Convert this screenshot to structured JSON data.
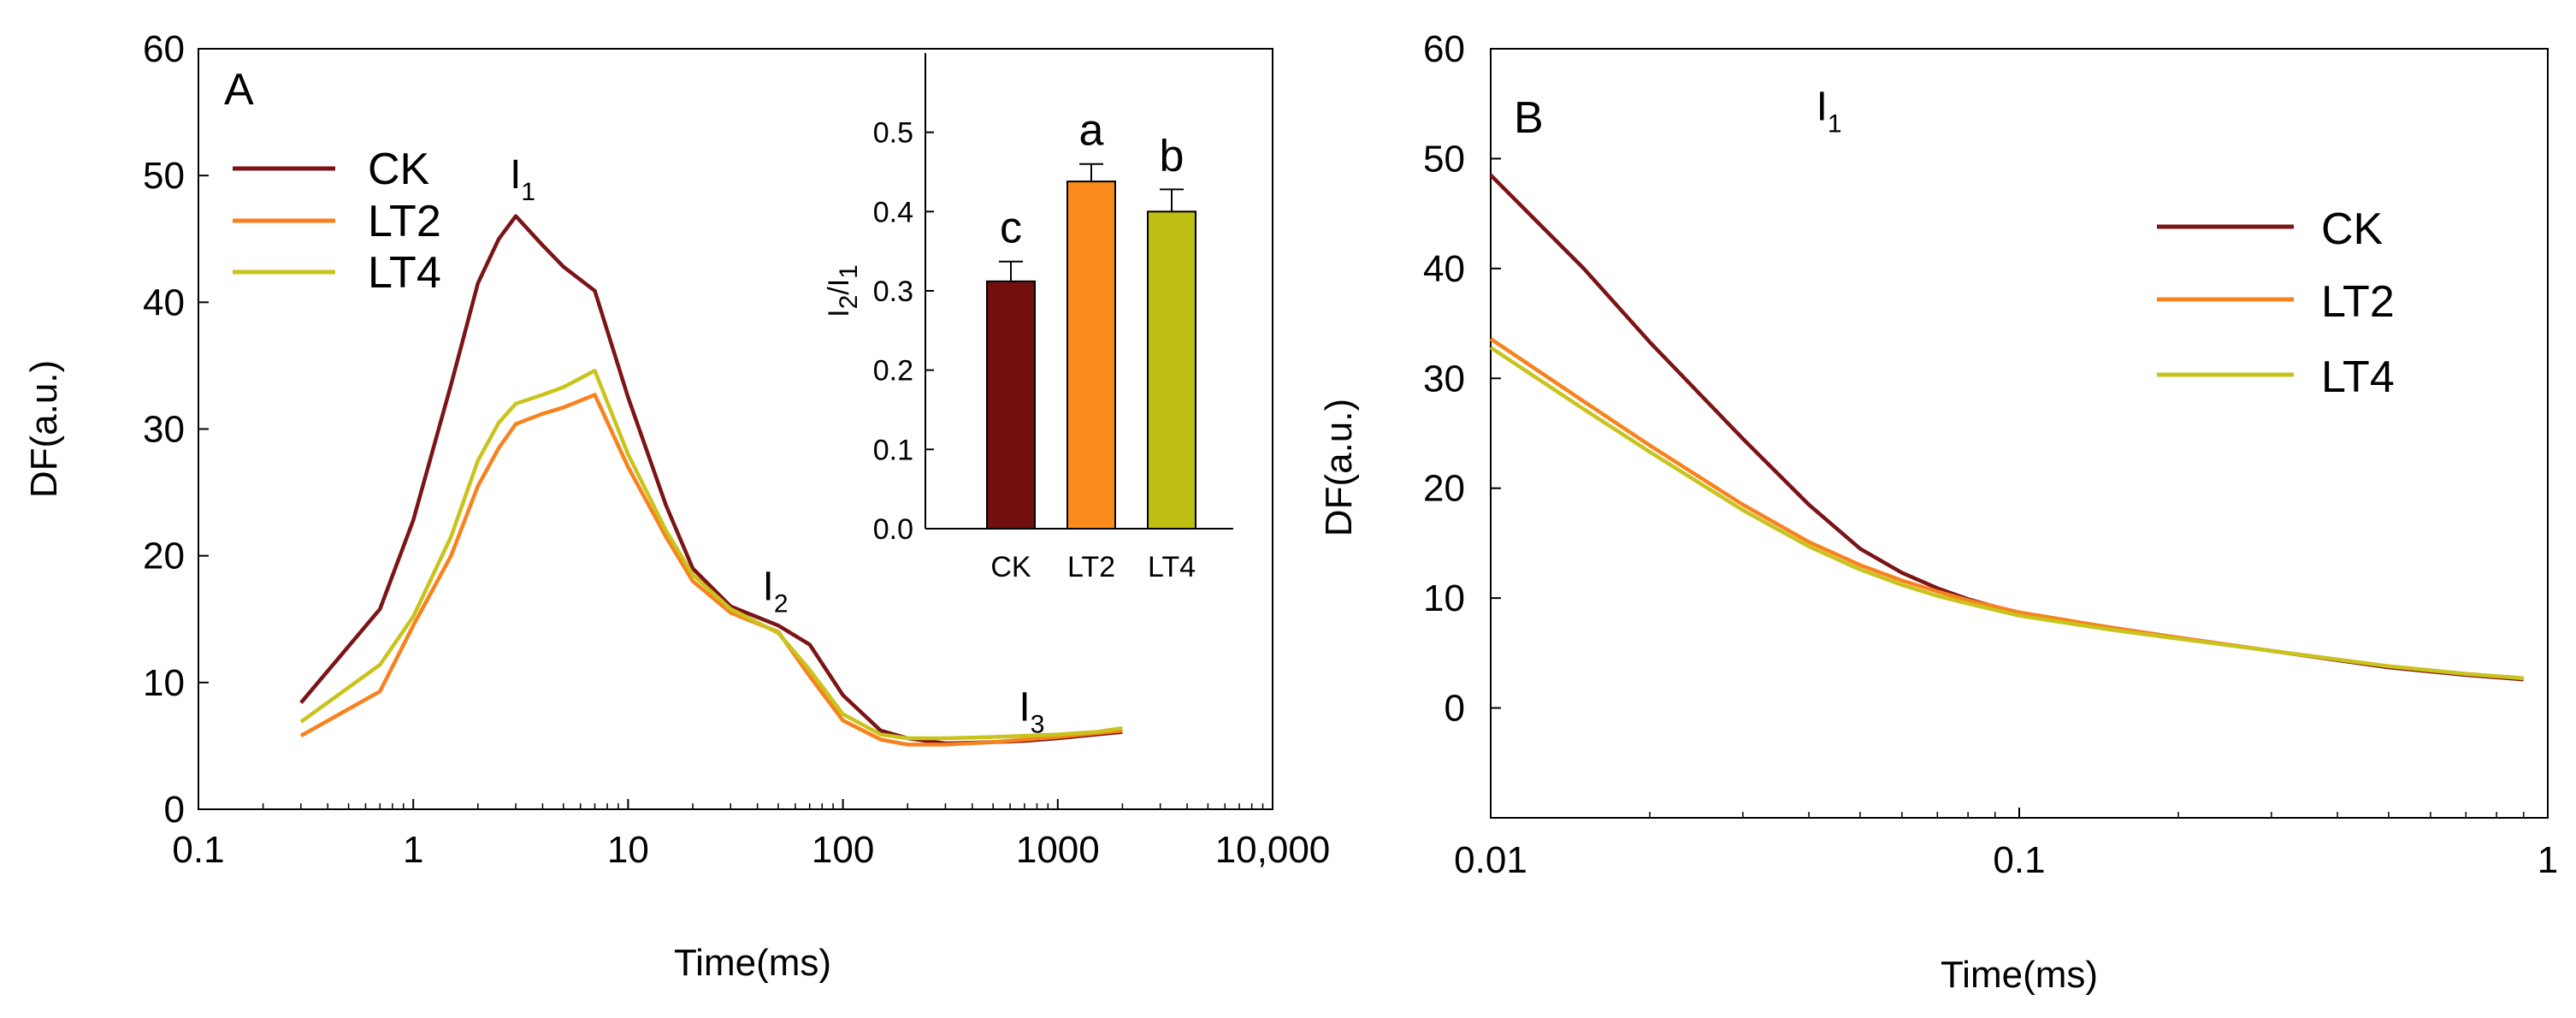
{
  "chart_data": [
    {
      "panel": "A",
      "type": "line",
      "xlabel": "Time(ms)",
      "ylabel": "DF(a.u.)",
      "x_scale": "log",
      "xlim": [
        0.1,
        10000
      ],
      "ylim": [
        0,
        60
      ],
      "x_ticks": [
        0.1,
        1,
        10,
        100,
        1000,
        10000
      ],
      "x_tick_labels": [
        "0.1",
        "1",
        "10",
        "100",
        "1000",
        "10,000"
      ],
      "y_ticks": [
        0,
        10,
        20,
        30,
        40,
        50,
        60
      ],
      "y_tick_labels": [
        "0",
        "10",
        "20",
        "30",
        "40",
        "50",
        "60"
      ],
      "legend_position": "top-left",
      "annotations": [
        {
          "base": "I",
          "sub": "1",
          "x": 3.2,
          "y": 49
        },
        {
          "base": "I",
          "sub": "2",
          "x": 48,
          "y": 16.5
        },
        {
          "base": "I",
          "sub": "3",
          "x": 750,
          "y": 7
        }
      ],
      "series": [
        {
          "name": "CK",
          "color": "#7b1416",
          "x": [
            0.3,
            0.7,
            1,
            1.5,
            2,
            2.5,
            3,
            4,
            5,
            7,
            10,
            15,
            20,
            30,
            50,
            70,
            100,
            150,
            200,
            300,
            500,
            700,
            1000,
            1500,
            2000
          ],
          "y": [
            8.4,
            15.8,
            22.8,
            33.5,
            41.5,
            45.0,
            46.8,
            44.5,
            42.8,
            40.9,
            32.5,
            24.0,
            19.0,
            16.0,
            14.5,
            13.0,
            9.0,
            6.2,
            5.6,
            5.2,
            5.3,
            5.4,
            5.6,
            5.9,
            6.1
          ]
        },
        {
          "name": "LT2",
          "color": "#f7821e",
          "x": [
            0.3,
            0.7,
            1,
            1.5,
            2,
            2.5,
            3,
            4,
            5,
            7,
            10,
            15,
            20,
            30,
            50,
            70,
            100,
            150,
            200,
            300,
            500,
            700,
            1000,
            1500,
            2000
          ],
          "y": [
            5.8,
            9.3,
            14.5,
            20.0,
            25.5,
            28.5,
            30.4,
            31.2,
            31.7,
            32.7,
            27.0,
            21.5,
            18.0,
            15.5,
            14.0,
            10.5,
            7.0,
            5.5,
            5.1,
            5.1,
            5.3,
            5.5,
            5.7,
            6.0,
            6.2
          ]
        },
        {
          "name": "LT4",
          "color": "#c9c31e",
          "x": [
            0.3,
            0.7,
            1,
            1.5,
            2,
            2.5,
            3,
            4,
            5,
            7,
            10,
            15,
            20,
            30,
            50,
            70,
            100,
            150,
            200,
            300,
            500,
            700,
            1000,
            1500,
            2000
          ],
          "y": [
            6.9,
            11.4,
            15.2,
            21.5,
            27.5,
            30.5,
            32.0,
            32.7,
            33.3,
            34.6,
            28.0,
            22.0,
            18.5,
            15.8,
            13.9,
            11.0,
            7.5,
            5.9,
            5.6,
            5.6,
            5.7,
            5.8,
            5.9,
            6.1,
            6.4
          ]
        }
      ]
    },
    {
      "panel": "A-inset",
      "type": "bar",
      "ylabel": {
        "base": "I",
        "sub1": "2",
        "sep": "/I",
        "sub2": "1"
      },
      "ylim": [
        0,
        0.6
      ],
      "y_ticks": [
        0.0,
        0.1,
        0.2,
        0.3,
        0.4,
        0.5
      ],
      "y_tick_labels": [
        "0.0",
        "0.1",
        "0.2",
        "0.3",
        "0.4",
        "0.5"
      ],
      "categories": [
        "CK",
        "LT2",
        "LT4"
      ],
      "values": [
        0.312,
        0.438,
        0.4
      ],
      "errors": [
        0.025,
        0.022,
        0.028
      ],
      "colors": [
        "#720f0f",
        "#fb8a1d",
        "#bfbe12"
      ],
      "significance": [
        "c",
        "a",
        "b"
      ]
    },
    {
      "panel": "B",
      "type": "line",
      "xlabel": "Time(ms)",
      "ylabel": "DF(a.u.)",
      "x_scale": "log",
      "xlim": [
        0.01,
        1
      ],
      "ylim": [
        -10,
        60
      ],
      "x_ticks": [
        0.01,
        0.1,
        1
      ],
      "x_tick_labels": [
        "0.01",
        "0.1",
        "1"
      ],
      "y_ticks": [
        0,
        10,
        20,
        30,
        40,
        50,
        60
      ],
      "y_tick_labels": [
        "0",
        "10",
        "20",
        "30",
        "40",
        "50",
        "60"
      ],
      "legend_position": "top-right",
      "annotations": [
        {
          "base": "I",
          "sub": "1",
          "x": 0.0435,
          "y": 53.5
        }
      ],
      "series": [
        {
          "name": "CK",
          "color": "#7b1416",
          "x": [
            0.01,
            0.015,
            0.02,
            0.03,
            0.04,
            0.05,
            0.06,
            0.07,
            0.08,
            0.1,
            0.15,
            0.2,
            0.3,
            0.5,
            0.7,
            0.9
          ],
          "y": [
            48.5,
            40.0,
            33.3,
            24.5,
            18.5,
            14.5,
            12.3,
            10.9,
            9.9,
            8.6,
            7.3,
            6.4,
            5.2,
            3.7,
            3.0,
            2.6
          ]
        },
        {
          "name": "LT2",
          "color": "#f7821e",
          "x": [
            0.01,
            0.015,
            0.02,
            0.03,
            0.04,
            0.05,
            0.06,
            0.07,
            0.08,
            0.1,
            0.15,
            0.2,
            0.3,
            0.5,
            0.7,
            0.9
          ],
          "y": [
            33.6,
            27.9,
            23.9,
            18.5,
            15.1,
            13.0,
            11.6,
            10.6,
            9.8,
            8.7,
            7.3,
            6.4,
            5.2,
            3.8,
            3.1,
            2.7
          ]
        },
        {
          "name": "LT4",
          "color": "#c9c31e",
          "x": [
            0.01,
            0.015,
            0.02,
            0.03,
            0.04,
            0.05,
            0.06,
            0.07,
            0.08,
            0.1,
            0.15,
            0.2,
            0.3,
            0.5,
            0.7,
            0.9
          ],
          "y": [
            32.8,
            27.2,
            23.3,
            18.0,
            14.7,
            12.6,
            11.2,
            10.2,
            9.5,
            8.4,
            7.1,
            6.3,
            5.2,
            3.8,
            3.1,
            2.7
          ]
        }
      ]
    }
  ]
}
